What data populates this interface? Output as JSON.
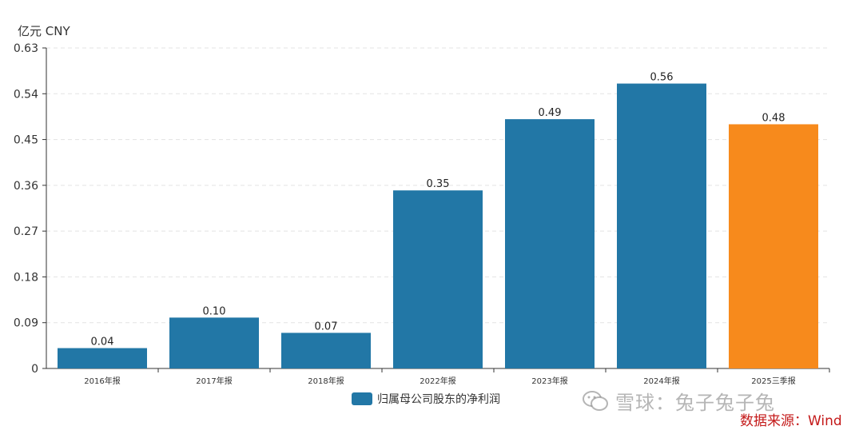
{
  "chart_data": {
    "type": "bar",
    "unit_label": "亿元  CNY",
    "categories": [
      "2016年报",
      "2017年报",
      "2018年报",
      "2022年报",
      "2023年报",
      "2024年报",
      "2025三季报"
    ],
    "values": [
      0.04,
      0.1,
      0.07,
      0.35,
      0.49,
      0.56,
      0.48
    ],
    "data_labels": [
      "0.04",
      "0.10",
      "0.07",
      "0.35",
      "0.49",
      "0.56",
      "0.48"
    ],
    "y_ticks": [
      "0",
      "0.09",
      "0.18",
      "0.27",
      "0.36",
      "0.45",
      "0.54",
      "0.63"
    ],
    "ylim": [
      0,
      0.63
    ],
    "grid": true,
    "legend_position": "bottom",
    "series": [
      {
        "name": "归属母公司股东的净利润",
        "values": [
          0.04,
          0.1,
          0.07,
          0.35,
          0.49,
          0.56,
          0.48
        ]
      }
    ],
    "colors": {
      "primary": "#2277a6",
      "highlight": "#f78a1c",
      "grid": "#e3e3e3",
      "axis": "#333333"
    },
    "highlight_index": 6
  },
  "watermark": {
    "text": "雪球：兔子兔子兔",
    "icon": "wechat-icon"
  },
  "source_text": "数据来源：Wind"
}
